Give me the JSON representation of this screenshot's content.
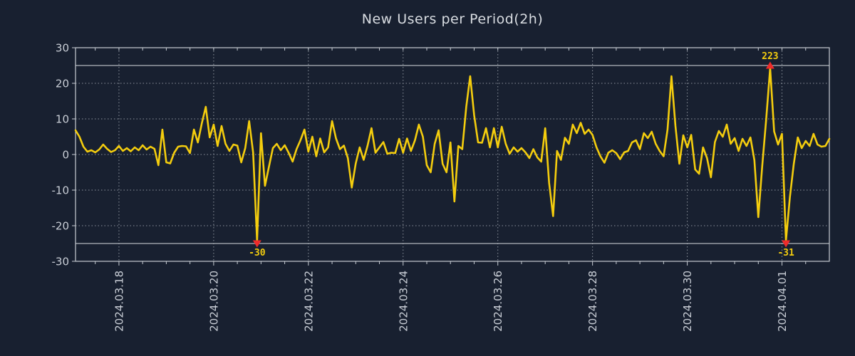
{
  "page": {
    "background": "#182030"
  },
  "chart_data": {
    "type": "line",
    "title": "New Users per Period(2h)",
    "series_name": "New Users",
    "period_hours": 2,
    "start_time": "2024-03-17 02:00",
    "xlabel": "",
    "ylabel": "",
    "ylim": [
      -30,
      30
    ],
    "y_ticks": [
      30,
      20,
      10,
      0,
      -10,
      -20,
      -30
    ],
    "y_grid_dotted": [
      20,
      10,
      0,
      -10,
      -20
    ],
    "clip_thresholds": {
      "upper": 25,
      "lower": -25
    },
    "x_tick_labels": [
      "2024.03.18",
      "2024.03.20",
      "2024.03.22",
      "2024.03.24",
      "2024.03.26",
      "2024.03.28",
      "2024.03.30",
      "2024.04.01"
    ],
    "x_tick_indices": [
      11,
      35,
      59,
      83,
      107,
      131,
      155,
      179
    ],
    "minor_tick_step": 6,
    "grid": true,
    "legend": "none",
    "values": [
      6.8,
      5.0,
      2.2,
      0.8,
      1.2,
      0.6,
      1.4,
      2.8,
      1.6,
      0.7,
      1.2,
      2.4,
      1.0,
      1.8,
      0.9,
      2.0,
      1.2,
      2.6,
      1.4,
      2.2,
      1.6,
      -3.0,
      7.0,
      -2.2,
      -2.5,
      0.5,
      2.2,
      2.4,
      2.3,
      0.4,
      7.0,
      3.4,
      8.8,
      13.4,
      4.8,
      8.4,
      2.4,
      8.0,
      3.0,
      1.0,
      2.8,
      2.5,
      -2.2,
      1.8,
      9.4,
      0.5,
      -30,
      6.0,
      -8.8,
      -3.5,
      1.8,
      3.0,
      1.2,
      2.6,
      0.5,
      -2.0,
      1.5,
      4.0,
      7.0,
      0.8,
      5.0,
      -0.5,
      4.5,
      0.6,
      2.0,
      9.4,
      4.5,
      1.5,
      2.5,
      -1.0,
      -9.3,
      -2.5,
      2.0,
      -1.5,
      2.5,
      7.4,
      0.5,
      2.0,
      3.5,
      0.2,
      0.5,
      0.4,
      4.4,
      0.5,
      4.5,
      1.0,
      4.0,
      8.4,
      5.0,
      -3.0,
      -5.0,
      3.0,
      6.8,
      -2.6,
      -5.0,
      3.4,
      -13.2,
      2.4,
      1.5,
      13.4,
      22.0,
      11.0,
      3.4,
      3.3,
      7.4,
      2.0,
      7.4,
      2.0,
      7.8,
      3.0,
      0.2,
      2.0,
      0.8,
      1.8,
      0.6,
      -1.0,
      1.5,
      -0.8,
      -2.0,
      7.4,
      -8.0,
      -17.3,
      1.0,
      -1.5,
      4.7,
      3.0,
      8.4,
      6.0,
      8.9,
      5.8,
      7.0,
      5.5,
      2.0,
      -0.5,
      -2.3,
      0.5,
      1.2,
      0.4,
      -1.3,
      0.6,
      1.0,
      3.4,
      4.0,
      1.5,
      6.0,
      4.6,
      6.4,
      3.0,
      1.0,
      -0.5,
      7.0,
      22.0,
      8.0,
      -2.6,
      5.4,
      2.0,
      5.5,
      -4.2,
      -5.4,
      2.0,
      -1.0,
      -6.4,
      3.5,
      6.6,
      5.0,
      8.4,
      3.0,
      4.6,
      1.0,
      4.4,
      2.4,
      4.8,
      -1.6,
      -17.6,
      -3.2,
      10.0,
      223,
      6.5,
      2.8,
      5.8,
      -31,
      -12.0,
      -2.6,
      4.8,
      1.8,
      3.8,
      2.4,
      5.8,
      2.8,
      2.2,
      2.4,
      4.4
    ],
    "annotations": [
      {
        "index": 46,
        "label": "-30"
      },
      {
        "index": 176,
        "label": "223"
      },
      {
        "index": 180,
        "label": "-31"
      }
    ],
    "style": {
      "line_color": "#F4CD0E",
      "marker_color": "#EE2B2B",
      "annotation_color": "#F4CD0E",
      "border_color": "#C7CCD3",
      "grid_color": "#8E959E",
      "threshold_color": "#D8DCE1",
      "label_color": "#C9CED6",
      "title_color": "#D9DDE2",
      "background": "#182030"
    }
  }
}
